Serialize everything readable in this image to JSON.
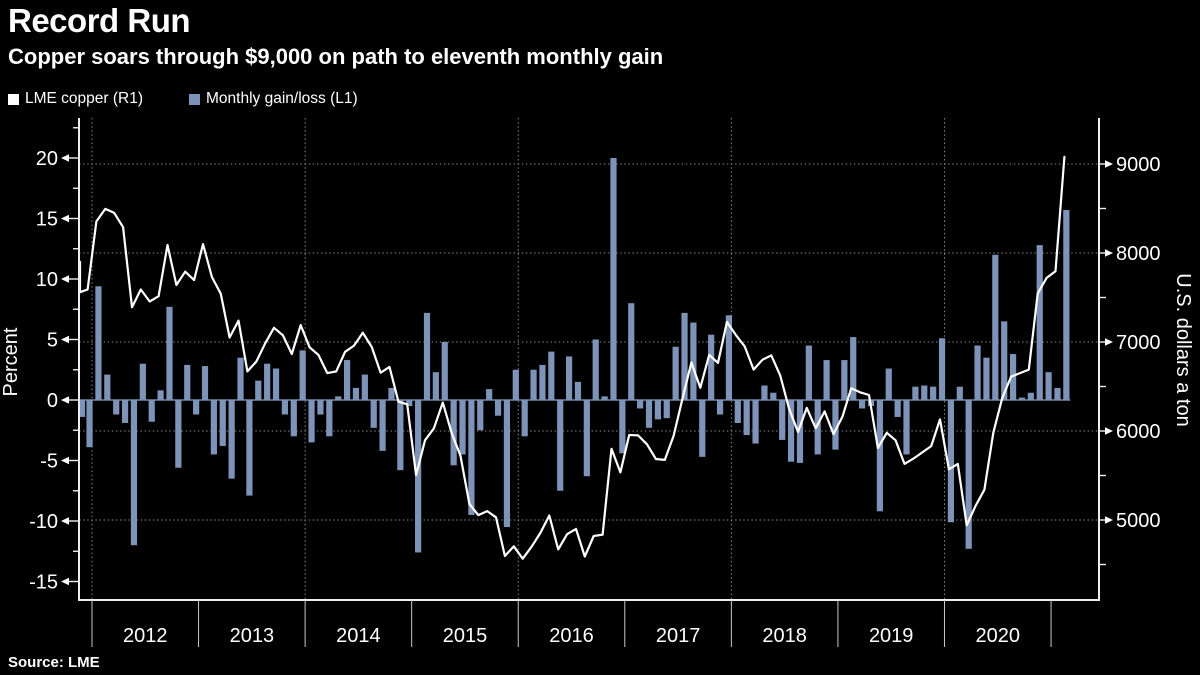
{
  "header": {
    "title": "Record Run",
    "subtitle": "Copper soars through $9,000 on path to eleventh monthly gain"
  },
  "legend": {
    "items": [
      {
        "label": "LME copper (R1)",
        "swatch_color": "#ffffff"
      },
      {
        "label": "Monthly gain/loss (L1)",
        "swatch_color": "#7e93b8"
      }
    ]
  },
  "footer": {
    "source": "Source: LME"
  },
  "colors": {
    "background": "#000000",
    "bar": "#7e93b8",
    "line": "#ffffff",
    "grid": "#9e9e9e",
    "axis": "#ededed",
    "year_tick": "#c8c8c8",
    "text": "#ffffff"
  },
  "chart_data": {
    "type": "combo",
    "title": "Record Run",
    "subtitle": "Copper soars through $9,000 on path to eleventh monthly gain",
    "left_axis": {
      "label": "Percent",
      "ticks": [
        20,
        15,
        10,
        5,
        0,
        -5,
        -10,
        -15
      ],
      "minor_step": 2.5,
      "range_top": 23.3,
      "range_bottom": -16.5
    },
    "right_axis": {
      "label": "U.S. dollars a ton",
      "ticks": [
        9000,
        8000,
        7000,
        6000,
        5000
      ],
      "minor_ticks": [
        8500,
        7500,
        6500,
        5500,
        4500
      ]
    },
    "x_axis": {
      "year_labels": [
        "2012",
        "2013",
        "2014",
        "2015",
        "2016",
        "2017",
        "2018",
        "2019",
        "2020"
      ],
      "vertical_grid_years": [
        "2012",
        "2014",
        "2016",
        "2018",
        "2020"
      ]
    },
    "grid": {
      "horizontal_at_right_axis_values": [
        9000,
        8000,
        7000,
        6000,
        5000
      ]
    },
    "months": [
      "2011-10",
      "2011-11",
      "2011-12",
      "2012-01",
      "2012-02",
      "2012-03",
      "2012-04",
      "2012-05",
      "2012-06",
      "2012-07",
      "2012-08",
      "2012-09",
      "2012-10",
      "2012-11",
      "2012-12",
      "2013-01",
      "2013-02",
      "2013-03",
      "2013-04",
      "2013-05",
      "2013-06",
      "2013-07",
      "2013-08",
      "2013-09",
      "2013-10",
      "2013-11",
      "2013-12",
      "2014-01",
      "2014-02",
      "2014-03",
      "2014-04",
      "2014-05",
      "2014-06",
      "2014-07",
      "2014-08",
      "2014-09",
      "2014-10",
      "2014-11",
      "2014-12",
      "2015-01",
      "2015-02",
      "2015-03",
      "2015-04",
      "2015-05",
      "2015-06",
      "2015-07",
      "2015-08",
      "2015-09",
      "2015-10",
      "2015-11",
      "2015-12",
      "2016-01",
      "2016-02",
      "2016-03",
      "2016-04",
      "2016-05",
      "2016-06",
      "2016-07",
      "2016-08",
      "2016-09",
      "2016-10",
      "2016-11",
      "2016-12",
      "2017-01",
      "2017-02",
      "2017-03",
      "2017-04",
      "2017-05",
      "2017-06",
      "2017-07",
      "2017-08",
      "2017-09",
      "2017-10",
      "2017-11",
      "2017-12",
      "2018-01",
      "2018-02",
      "2018-03",
      "2018-04",
      "2018-05",
      "2018-06",
      "2018-07",
      "2018-08",
      "2018-09",
      "2018-10",
      "2018-11",
      "2018-12",
      "2019-01",
      "2019-02",
      "2019-03",
      "2019-04",
      "2019-05",
      "2019-06",
      "2019-07",
      "2019-08",
      "2019-09",
      "2019-10",
      "2019-11",
      "2019-12",
      "2020-01",
      "2020-02",
      "2020-03",
      "2020-04",
      "2020-05",
      "2020-06",
      "2020-07",
      "2020-08",
      "2020-09",
      "2020-10",
      "2020-11",
      "2020-12",
      "2021-01",
      "2021-02"
    ],
    "series": [
      {
        "name": "Monthly gain/loss (L1)",
        "type": "bar",
        "axis": "left",
        "unit": "percent",
        "values": [
          null,
          -1.4,
          -3.9,
          9.4,
          2.1,
          -1.2,
          -1.9,
          -12.0,
          3.0,
          -1.8,
          0.8,
          7.7,
          -5.6,
          2.9,
          -1.2,
          2.8,
          -4.5,
          -3.8,
          -6.5,
          3.5,
          -7.9,
          1.6,
          3.0,
          2.6,
          -1.2,
          -3.0,
          4.1,
          -3.5,
          -1.2,
          -3.0,
          0.3,
          3.3,
          1.0,
          2.1,
          -2.3,
          -4.2,
          1.0,
          -5.8,
          -0.5,
          -12.6,
          7.2,
          2.3,
          4.8,
          -5.4,
          -4.5,
          -9.5,
          -2.5,
          0.9,
          -1.3,
          -10.5,
          2.5,
          -3.0,
          2.5,
          2.9,
          4.0,
          -7.5,
          3.6,
          1.5,
          -6.3,
          5.0,
          0.3,
          20.0,
          -4.4,
          8.0,
          -0.7,
          -2.3,
          -1.6,
          -1.5,
          4.4,
          7.2,
          6.4,
          -4.7,
          5.4,
          -1.2,
          7.0,
          -1.9,
          -2.9,
          -3.6,
          1.2,
          0.6,
          -3.3,
          -5.1,
          -5.2,
          4.5,
          -4.5,
          3.3,
          -4.1,
          3.3,
          5.2,
          -0.7,
          -0.5,
          -9.2,
          2.6,
          -1.4,
          -4.5,
          1.1,
          1.2,
          1.1,
          5.1,
          -10.1,
          1.1,
          -12.3,
          4.5,
          3.5,
          12.0,
          6.5,
          3.8,
          0.2,
          0.6,
          12.8,
          2.3,
          1.0,
          15.7
        ]
      },
      {
        "name": "LME copper (R1)",
        "type": "line",
        "axis": "right",
        "unit": "usd_per_ton",
        "values": [
          7900,
          7560,
          7590,
          8355,
          8495,
          8450,
          8290,
          7390,
          7590,
          7455,
          7515,
          8090,
          7640,
          7790,
          7695,
          8100,
          7730,
          7540,
          7050,
          7240,
          6670,
          6780,
          6985,
          7160,
          7075,
          6865,
          7190,
          6940,
          6855,
          6650,
          6670,
          6890,
          6960,
          7105,
          6945,
          6655,
          6720,
          6330,
          6300,
          5505,
          5895,
          6030,
          6320,
          5980,
          5720,
          5180,
          5055,
          5100,
          5030,
          4595,
          4705,
          4565,
          4700,
          4855,
          5050,
          4670,
          4840,
          4900,
          4590,
          4820,
          4835,
          5800,
          5535,
          5955,
          5950,
          5850,
          5685,
          5675,
          5945,
          6365,
          6770,
          6485,
          6855,
          6765,
          7225,
          7080,
          6950,
          6690,
          6800,
          6850,
          6625,
          6250,
          5990,
          6260,
          6030,
          6220,
          5965,
          6160,
          6480,
          6435,
          6405,
          5810,
          5980,
          5895,
          5630,
          5690,
          5760,
          5830,
          6130,
          5570,
          5630,
          4940,
          5160,
          5340,
          5980,
          6370,
          6610,
          6650,
          6690,
          7545,
          7720,
          7795,
          9080
        ]
      }
    ]
  }
}
